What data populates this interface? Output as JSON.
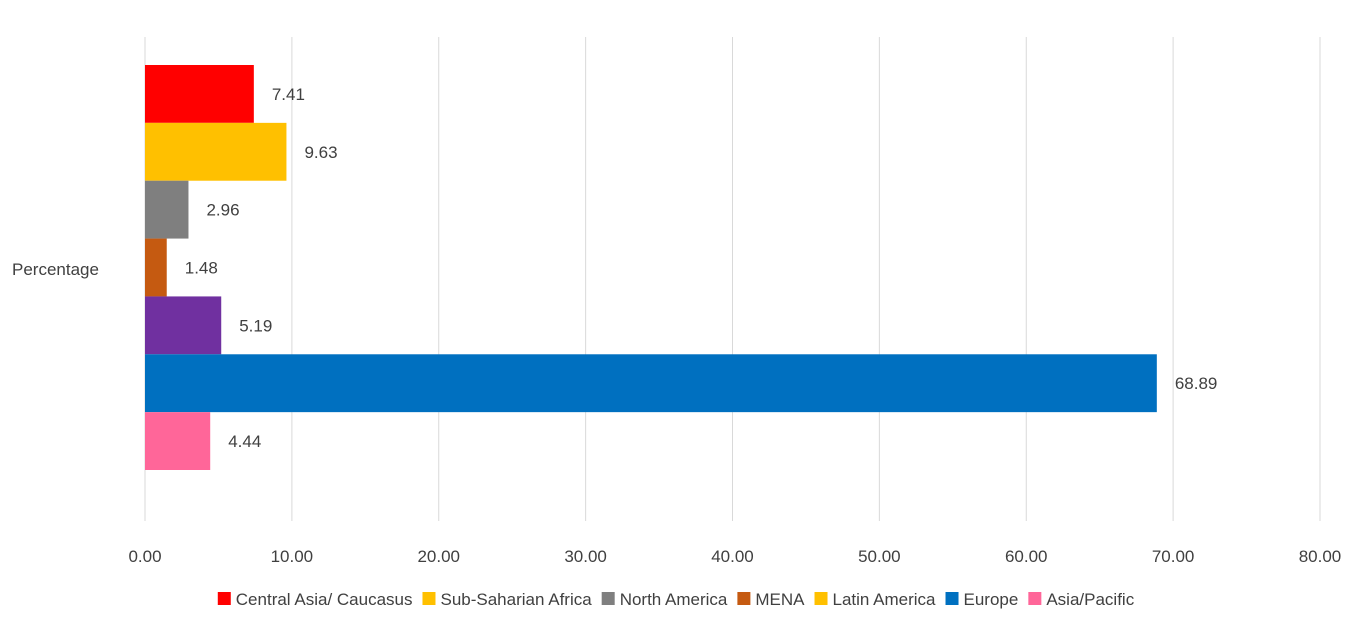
{
  "chart_data": {
    "type": "bar",
    "orientation": "horizontal",
    "categories": [
      "Percentage"
    ],
    "series": [
      {
        "name": "Central Asia/ Caucasus",
        "values": [
          7.41
        ],
        "color": "#FF0000",
        "data_label": "7.41"
      },
      {
        "name": "Sub-Saharian Africa",
        "values": [
          9.63
        ],
        "color": "#FFC000",
        "data_label": "9.63"
      },
      {
        "name": "North America",
        "values": [
          2.96
        ],
        "color": "#7F7F7F",
        "data_label": "2.96"
      },
      {
        "name": "MENA",
        "values": [
          1.48
        ],
        "color": "#C55A11",
        "data_label": "1.48"
      },
      {
        "name": "Latin America",
        "values": [
          5.19
        ],
        "color": "#7030A0",
        "legend_color": "#FFC000",
        "data_label": "5.19"
      },
      {
        "name": "Europe",
        "values": [
          68.89
        ],
        "color": "#0070C0",
        "data_label": "68.89"
      },
      {
        "name": "Asia/Pacific",
        "values": [
          4.44
        ],
        "color": "#FF6699",
        "data_label": "4.44"
      }
    ],
    "xlim": [
      0,
      80
    ],
    "x_ticks": [
      "0.00",
      "10.00",
      "20.00",
      "30.00",
      "40.00",
      "50.00",
      "60.00",
      "70.00",
      "80.00"
    ],
    "grid": true,
    "legend_position": "bottom",
    "title": "",
    "xlabel": "",
    "ylabel": ""
  }
}
